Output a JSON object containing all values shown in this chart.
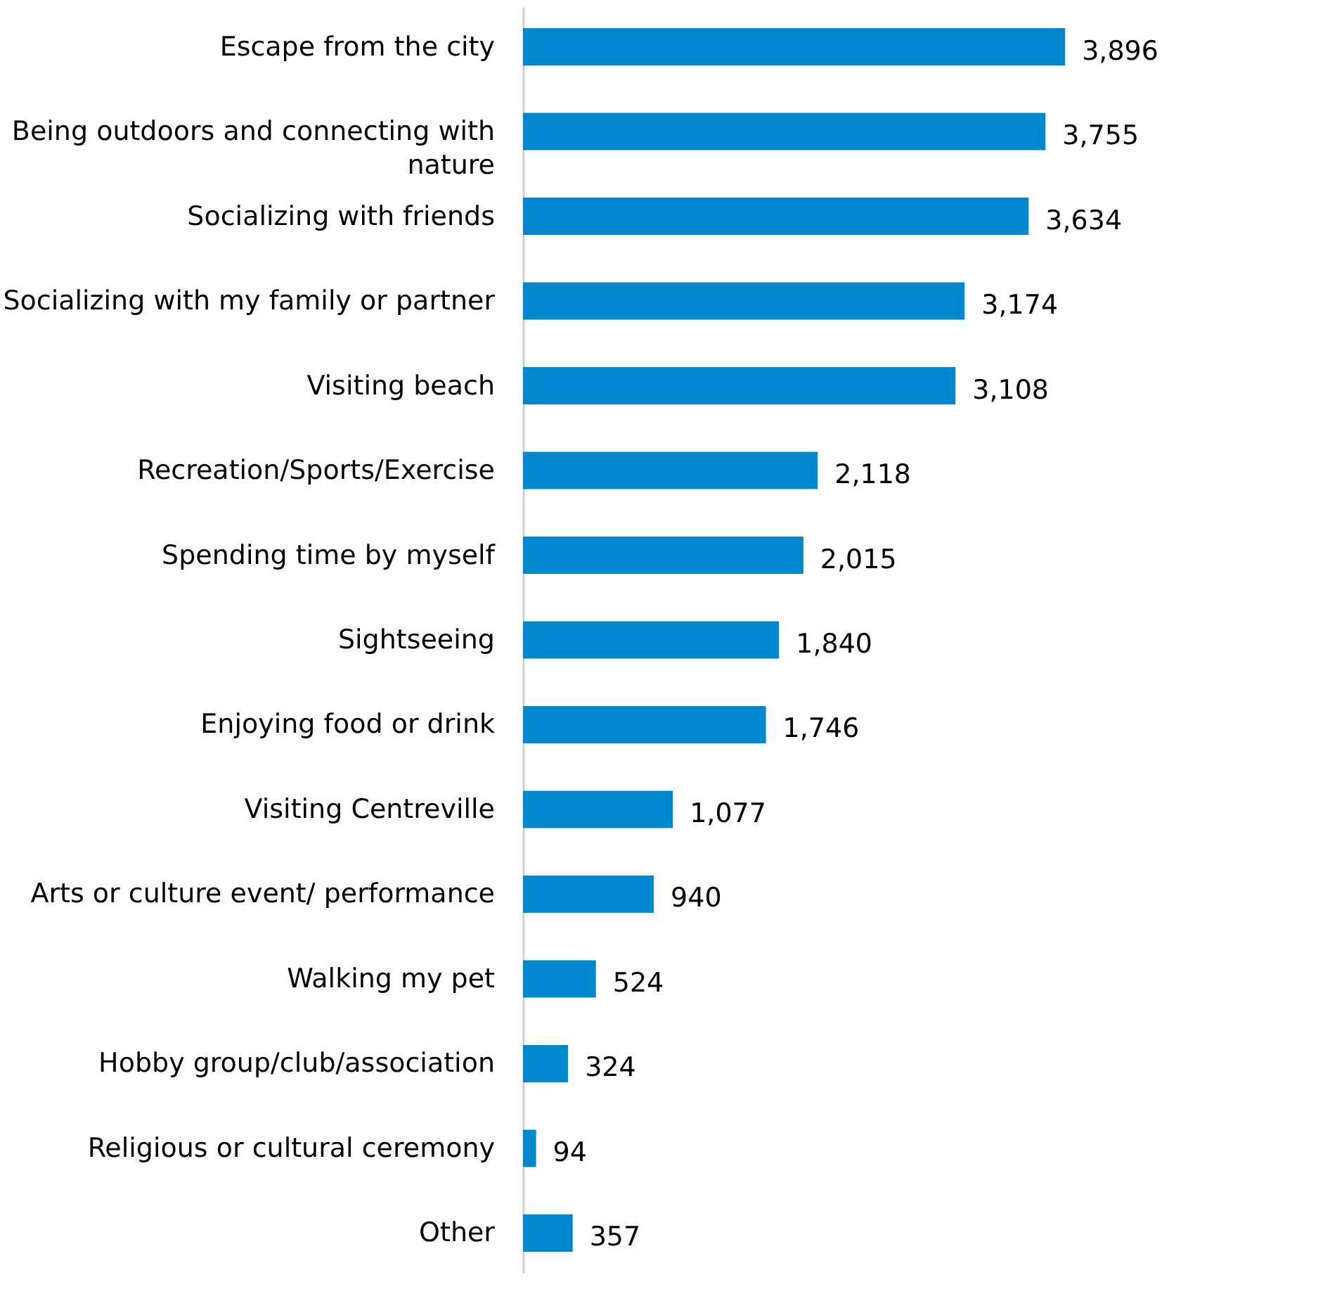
{
  "chart_data": {
    "type": "bar",
    "orientation": "horizontal",
    "color": "#0087cd",
    "categories": [
      "Escape from the city",
      "Being outdoors and connecting with nature",
      "Socializing with friends",
      "Socializing with my family or partner",
      "Visiting beach",
      "Recreation/Sports/Exercise",
      "Spending time by myself",
      "Sightseeing",
      "Enjoying food or drink",
      "Visiting Centreville",
      "Arts or culture event/ performance",
      "Walking my pet",
      "Hobby group/club/association",
      "Religious or cultural ceremony",
      "Other"
    ],
    "values": [
      3896,
      3755,
      3634,
      3174,
      3108,
      2118,
      2015,
      1840,
      1746,
      1077,
      940,
      524,
      324,
      94,
      357
    ],
    "value_labels": [
      "3,896",
      "3,755",
      "3,634",
      "3,174",
      "3,108",
      "2,118",
      "2,015",
      "1,840",
      "1,746",
      "1,077",
      "940",
      "524",
      "324",
      "94",
      "357"
    ],
    "grid": false
  }
}
